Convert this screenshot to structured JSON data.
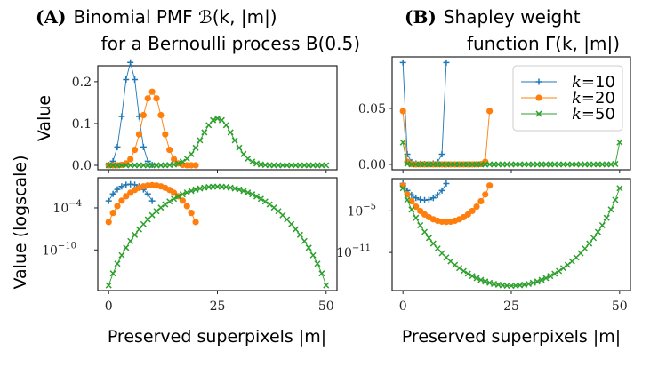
{
  "chart_data": [
    {
      "panel": "A-top",
      "type": "line",
      "title_label": "(A)",
      "title": "Binomial PMF ℬ(k, |m|)",
      "title_line2": "for a Bernoulli process B(0.5)",
      "ylabel": "Value",
      "xlabel": "",
      "yscale": "linear",
      "ylim": [
        -0.0106,
        0.238
      ],
      "xlim": [
        -2.5,
        52.5
      ],
      "yticks": [
        {
          "v": 0,
          "label": "0.0"
        },
        {
          "v": 0.1,
          "label": "0.1"
        },
        {
          "v": 0.2,
          "label": "0.2"
        }
      ],
      "xticks": [
        0,
        25,
        50
      ],
      "series_ref": "binomial"
    },
    {
      "panel": "A-bottom",
      "type": "line",
      "ylabel": "Value (logscale)",
      "xlabel": "Preserved superpixels |m|",
      "yscale": "log",
      "ylim_log10": [
        -15.8,
        0.31
      ],
      "xlim": [
        -2.5,
        52.5
      ],
      "yticks": [
        {
          "v": -4,
          "label": "10",
          "exp": "−4"
        },
        {
          "v": -10,
          "label": "10",
          "exp": "−10"
        }
      ],
      "xticks": [
        {
          "v": 0,
          "label": "0"
        },
        {
          "v": 25,
          "label": "25"
        },
        {
          "v": 50,
          "label": "50"
        }
      ],
      "series_ref": "binomial"
    },
    {
      "panel": "B-top",
      "type": "line",
      "title_label": "(B)",
      "title": "Shapley weight",
      "title_line2": "function Γ(k, |m|)",
      "yscale": "linear",
      "ylim": [
        -0.0048,
        0.096
      ],
      "xlim": [
        -2.5,
        52.5
      ],
      "yticks": [
        {
          "v": 0,
          "label": "0.00"
        },
        {
          "v": 0.05,
          "label": "0.05"
        }
      ],
      "xticks": [
        0,
        25,
        50
      ],
      "legend": "top-right",
      "series_ref": "shapley"
    },
    {
      "panel": "B-bottom",
      "type": "line",
      "xlabel": "Preserved superpixels |m|",
      "yscale": "log",
      "ylim_log10": [
        -16.5,
        -0.33
      ],
      "xlim": [
        -2.5,
        52.5
      ],
      "yticks": [
        {
          "v": -5,
          "label": "10",
          "exp": "−5"
        },
        {
          "v": -11,
          "label": "10",
          "exp": "−11"
        }
      ],
      "xticks": [
        {
          "v": 0,
          "label": "0"
        },
        {
          "v": 25,
          "label": "25"
        },
        {
          "v": 50,
          "label": "50"
        }
      ],
      "series_ref": "shapley"
    }
  ],
  "series": {
    "binomial": [
      {
        "name": "k=10",
        "k": 10,
        "color": "#1f77b4",
        "marker": "plus",
        "values": [
          0.000977,
          0.00977,
          0.0439,
          0.117,
          0.205,
          0.246,
          0.205,
          0.117,
          0.0439,
          0.00977,
          0.000977
        ]
      },
      {
        "name": "k=20",
        "k": 20,
        "color": "#ff7f0e",
        "marker": "circle",
        "values": [
          9.54e-07,
          1.91e-05,
          0.000181,
          0.00109,
          0.00462,
          0.0148,
          0.037,
          0.0739,
          0.12,
          0.16,
          0.176,
          0.16,
          0.12,
          0.0739,
          0.037,
          0.0148,
          0.00462,
          0.00109,
          0.000181,
          1.91e-05,
          9.54e-07
        ]
      },
      {
        "name": "k=50",
        "k": 50,
        "color": "#2ca02c",
        "marker": "x",
        "values": [
          8.88e-16,
          4.44e-14,
          1.09e-12,
          1.74e-11,
          2.05e-10,
          1.88e-09,
          1.41e-08,
          8.87e-08,
          4.77e-07,
          2.23e-06,
          9.12e-06,
          3.32e-05,
          0.000108,
          0.000315,
          0.000833,
          0.002,
          0.00437,
          0.00875,
          0.016,
          0.027,
          0.0419,
          0.0598,
          0.0788,
          0.096,
          0.108,
          0.112,
          0.108,
          0.096,
          0.0788,
          0.0598,
          0.0419,
          0.027,
          0.016,
          0.00875,
          0.00437,
          0.002,
          0.000833,
          0.000315,
          0.000108,
          3.32e-05,
          9.12e-06,
          2.23e-06,
          4.77e-07,
          8.87e-08,
          1.41e-08,
          1.88e-09,
          2.05e-10,
          1.74e-11,
          1.09e-12,
          4.44e-14,
          8.88e-16
        ]
      }
    ],
    "shapley": [
      {
        "name": "k=10",
        "k": 10,
        "color": "#1f77b4",
        "marker": "plus",
        "values": [
          0.0909,
          0.00909,
          0.00202,
          0.000758,
          0.000433,
          0.000361,
          0.000433,
          0.000758,
          0.00202,
          0.00909,
          0.0909
        ]
      },
      {
        "name": "k=20",
        "k": 20,
        "color": "#ff7f0e",
        "marker": "circle",
        "values": [
          0.0476,
          0.00238,
          0.000251,
          4.18e-05,
          9.83e-06,
          3.07e-06,
          1.23e-06,
          6.14e-07,
          3.78e-07,
          2.84e-07,
          2.58e-07,
          2.84e-07,
          3.78e-07,
          6.14e-07,
          1.23e-06,
          3.07e-06,
          9.83e-06,
          4.18e-05,
          0.000251,
          0.00238,
          0.0476
        ]
      },
      {
        "name": "k=50",
        "k": 50,
        "color": "#2ca02c",
        "marker": "x",
        "values": [
          0.0196,
          0.000392,
          1.6e-05,
          1e-06,
          8.51e-08,
          9.25e-09,
          1.23e-09,
          1.96e-10,
          3.65e-11,
          7.83e-12,
          1.91e-12,
          5.25e-13,
          1.62e-13,
          5.53e-14,
          2.09e-14,
          8.71e-15,
          3.98e-15,
          1.99e-15,
          1.09e-15,
          6.45e-16,
          4.16e-16,
          2.91e-16,
          2.21e-16,
          1.81e-16,
          1.61e-16,
          1.55e-16,
          1.61e-16,
          1.81e-16,
          2.21e-16,
          2.91e-16,
          4.16e-16,
          6.45e-16,
          1.09e-15,
          1.99e-15,
          3.98e-15,
          8.71e-15,
          2.09e-14,
          5.53e-14,
          1.62e-13,
          5.25e-13,
          1.91e-12,
          7.83e-12,
          3.65e-11,
          1.96e-10,
          1.23e-09,
          9.25e-09,
          8.51e-08,
          1e-06,
          1.6e-05,
          0.000392,
          0.0196
        ]
      }
    ]
  },
  "legend": {
    "entries": [
      {
        "k": "k",
        "eq": "=10"
      },
      {
        "k": "k",
        "eq": "=20"
      },
      {
        "k": "k",
        "eq": "=50"
      }
    ]
  }
}
